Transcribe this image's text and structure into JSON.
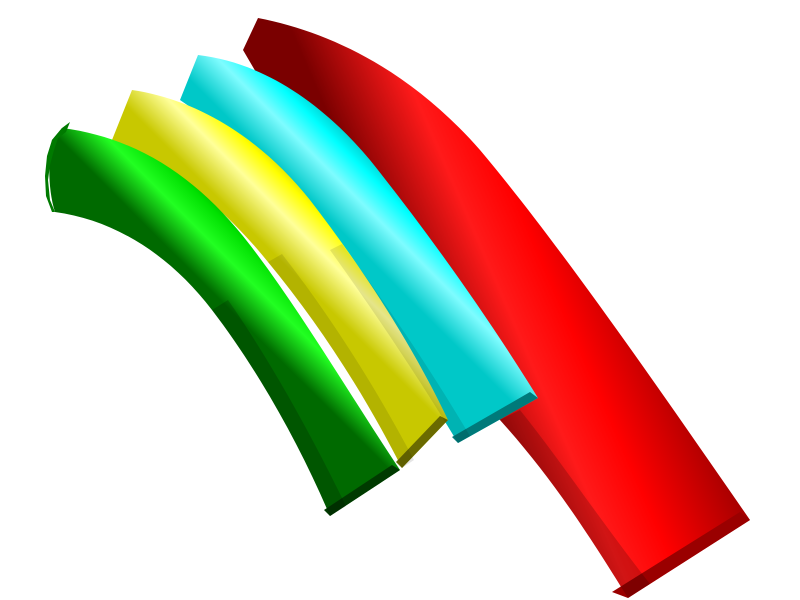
{
  "scene": {
    "background": "#ffffff",
    "tubes": [
      {
        "id": "red",
        "color": "#ff0000",
        "highlight": "#ff5a5a",
        "shadow": "#6a0000",
        "cap": "#b80000"
      },
      {
        "id": "cyan",
        "color": "#00ffff",
        "highlight": "#c8ffff",
        "shadow": "#006a6a",
        "cap": "#00b8b8"
      },
      {
        "id": "yellow",
        "color": "#ffff00",
        "highlight": "#ffffc0",
        "shadow": "#6a6a00",
        "cap": "#b8b800"
      },
      {
        "id": "green",
        "color": "#00e600",
        "highlight": "#66ff66",
        "shadow": "#005a00",
        "cap": "#009a00"
      }
    ]
  }
}
